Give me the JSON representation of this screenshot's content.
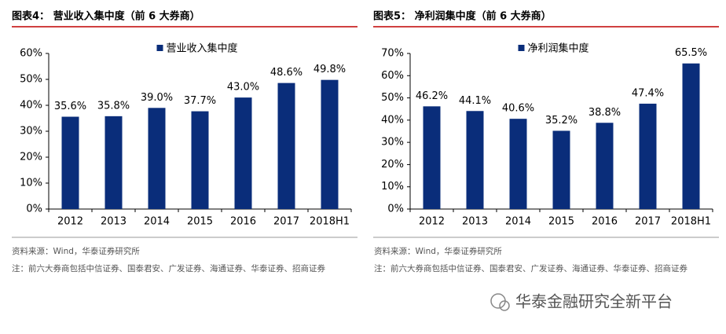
{
  "chart_data": [
    {
      "type": "bar",
      "title": "图表4：  营业收入集中度（前 6 大券商）",
      "categories": [
        "2012",
        "2013",
        "2014",
        "2015",
        "2016",
        "2017",
        "2018H1"
      ],
      "series": [
        {
          "name": "营业收入集中度",
          "color": "#0a2d7a",
          "values": [
            35.6,
            35.8,
            39.0,
            37.7,
            43.0,
            48.6,
            49.8
          ],
          "value_labels": [
            "35.6%",
            "35.8%",
            "39.0%",
            "37.7%",
            "43.0%",
            "48.6%",
            "49.8%"
          ]
        }
      ],
      "ylim": [
        0,
        60
      ],
      "yticks": [
        {
          "value": 0,
          "label": "0%"
        },
        {
          "value": 10,
          "label": "10%"
        },
        {
          "value": 20,
          "label": "20%"
        },
        {
          "value": 30,
          "label": "30%"
        },
        {
          "value": 40,
          "label": "40%"
        },
        {
          "value": 50,
          "label": "50%"
        },
        {
          "value": 60,
          "label": "60%"
        }
      ],
      "legend": "top",
      "source": "资料来源：Wind，华泰证券研究所",
      "note": "注：前六大券商包括中信证券、国泰君安、广发证券、海通证券、华泰证券、招商证券"
    },
    {
      "type": "bar",
      "title": "图表5：  净利润集中度（前 6 大券商）",
      "categories": [
        "2012",
        "2013",
        "2014",
        "2015",
        "2016",
        "2017",
        "2018H1"
      ],
      "series": [
        {
          "name": "净利润集中度",
          "color": "#0a2d7a",
          "values": [
            46.2,
            44.1,
            40.6,
            35.2,
            38.8,
            47.4,
            65.5
          ],
          "value_labels": [
            "46.2%",
            "44.1%",
            "40.6%",
            "35.2%",
            "38.8%",
            "47.4%",
            "65.5%"
          ]
        }
      ],
      "ylim": [
        0,
        70
      ],
      "yticks": [
        {
          "value": 0,
          "label": "0%"
        },
        {
          "value": 10,
          "label": "10%"
        },
        {
          "value": 20,
          "label": "20%"
        },
        {
          "value": 30,
          "label": "30%"
        },
        {
          "value": 40,
          "label": "40%"
        },
        {
          "value": 50,
          "label": "50%"
        },
        {
          "value": 60,
          "label": "60%"
        },
        {
          "value": 70,
          "label": "70%"
        }
      ],
      "legend": "top",
      "source": "资料来源：Wind，华泰证券研究所",
      "note": "注：前六大券商包括中信证券、国泰君安、广发证券、海通证券、华泰证券、招商证券"
    }
  ],
  "watermark": "华泰金融研究全新平台"
}
